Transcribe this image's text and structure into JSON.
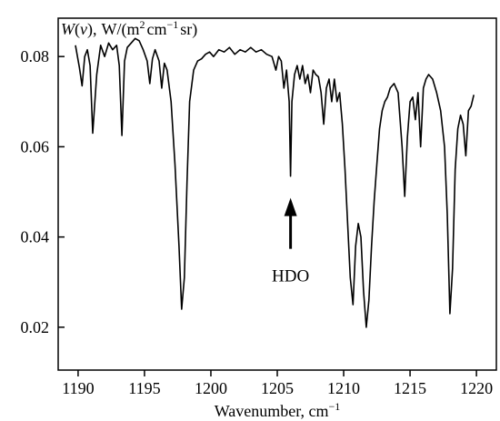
{
  "chart_data": {
    "type": "line",
    "title": "",
    "ylabel_parts": {
      "var": "W",
      "open": "(",
      "nu": "ν",
      "close": "),",
      "units": "W/(m",
      "sq": "2",
      "cm": "cm",
      "inv": "−1",
      "sr": "sr)"
    },
    "xlabel_text": "Wavenumber, cm",
    "xlabel_sup": "−1",
    "xlim": [
      1188.5,
      1221.5
    ],
    "ylim": [
      0.0105,
      0.0885
    ],
    "xticks": [
      1190,
      1195,
      1200,
      1205,
      1210,
      1215,
      1220
    ],
    "xtick_labels": [
      "1190",
      "1195",
      "1200",
      "1205",
      "1210",
      "1215",
      "1220"
    ],
    "yticks": [
      0.02,
      0.04,
      0.06,
      0.08
    ],
    "ytick_labels": [
      "0.02",
      "0.04",
      "0.06",
      "0.08"
    ],
    "grid": false,
    "line_color": "#000000",
    "annotation": {
      "text": "HDO",
      "x": 1206.0,
      "y": 0.0535
    },
    "series": [
      {
        "x": [
          1189.8,
          1190.1,
          1190.3,
          1190.5,
          1190.7,
          1190.9,
          1191.1,
          1191.4,
          1191.7,
          1192.0,
          1192.3,
          1192.6,
          1192.9,
          1193.1,
          1193.3,
          1193.5,
          1193.7,
          1194.0,
          1194.3,
          1194.6,
          1194.9,
          1195.2,
          1195.4,
          1195.6,
          1195.8,
          1196.1,
          1196.3,
          1196.5,
          1196.7,
          1197.0,
          1197.3,
          1197.6,
          1197.8,
          1198.0,
          1198.2,
          1198.4,
          1198.7,
          1199.0,
          1199.3,
          1199.6,
          1199.9,
          1200.2,
          1200.6,
          1201.0,
          1201.4,
          1201.8,
          1202.2,
          1202.6,
          1203.0,
          1203.4,
          1203.8,
          1204.2,
          1204.6,
          1204.9,
          1205.1,
          1205.3,
          1205.5,
          1205.7,
          1205.9,
          1206.0,
          1206.1,
          1206.3,
          1206.5,
          1206.7,
          1206.9,
          1207.1,
          1207.3,
          1207.5,
          1207.7,
          1207.9,
          1208.1,
          1208.3,
          1208.5,
          1208.7,
          1208.9,
          1209.1,
          1209.3,
          1209.5,
          1209.7,
          1209.9,
          1210.1,
          1210.3,
          1210.5,
          1210.7,
          1210.9,
          1211.1,
          1211.3,
          1211.5,
          1211.7,
          1211.9,
          1212.1,
          1212.3,
          1212.5,
          1212.7,
          1212.9,
          1213.1,
          1213.3,
          1213.5,
          1213.8,
          1214.1,
          1214.4,
          1214.6,
          1214.8,
          1215.0,
          1215.2,
          1215.4,
          1215.6,
          1215.8,
          1216.0,
          1216.2,
          1216.4,
          1216.7,
          1217.0,
          1217.3,
          1217.6,
          1217.8,
          1218.0,
          1218.2,
          1218.4,
          1218.6,
          1218.8,
          1219.0,
          1219.2,
          1219.4,
          1219.6,
          1219.8
        ],
        "y": [
          0.0825,
          0.0775,
          0.0735,
          0.08,
          0.0815,
          0.078,
          0.063,
          0.076,
          0.0825,
          0.08,
          0.083,
          0.0815,
          0.0825,
          0.078,
          0.0625,
          0.079,
          0.082,
          0.083,
          0.084,
          0.0835,
          0.0815,
          0.079,
          0.074,
          0.0795,
          0.0815,
          0.079,
          0.073,
          0.0785,
          0.077,
          0.07,
          0.056,
          0.038,
          0.024,
          0.031,
          0.052,
          0.07,
          0.077,
          0.079,
          0.0795,
          0.0805,
          0.081,
          0.08,
          0.0815,
          0.081,
          0.082,
          0.0805,
          0.0815,
          0.081,
          0.082,
          0.081,
          0.0815,
          0.0805,
          0.08,
          0.077,
          0.08,
          0.079,
          0.073,
          0.077,
          0.07,
          0.0535,
          0.07,
          0.076,
          0.078,
          0.075,
          0.078,
          0.074,
          0.076,
          0.072,
          0.077,
          0.076,
          0.0755,
          0.072,
          0.065,
          0.073,
          0.075,
          0.07,
          0.075,
          0.07,
          0.072,
          0.065,
          0.055,
          0.043,
          0.031,
          0.025,
          0.038,
          0.043,
          0.04,
          0.028,
          0.02,
          0.026,
          0.038,
          0.048,
          0.056,
          0.064,
          0.068,
          0.07,
          0.071,
          0.073,
          0.074,
          0.072,
          0.06,
          0.049,
          0.062,
          0.07,
          0.071,
          0.066,
          0.072,
          0.06,
          0.073,
          0.075,
          0.076,
          0.075,
          0.072,
          0.068,
          0.06,
          0.045,
          0.023,
          0.033,
          0.055,
          0.064,
          0.067,
          0.065,
          0.058,
          0.068,
          0.069,
          0.0715
        ]
      }
    ]
  }
}
